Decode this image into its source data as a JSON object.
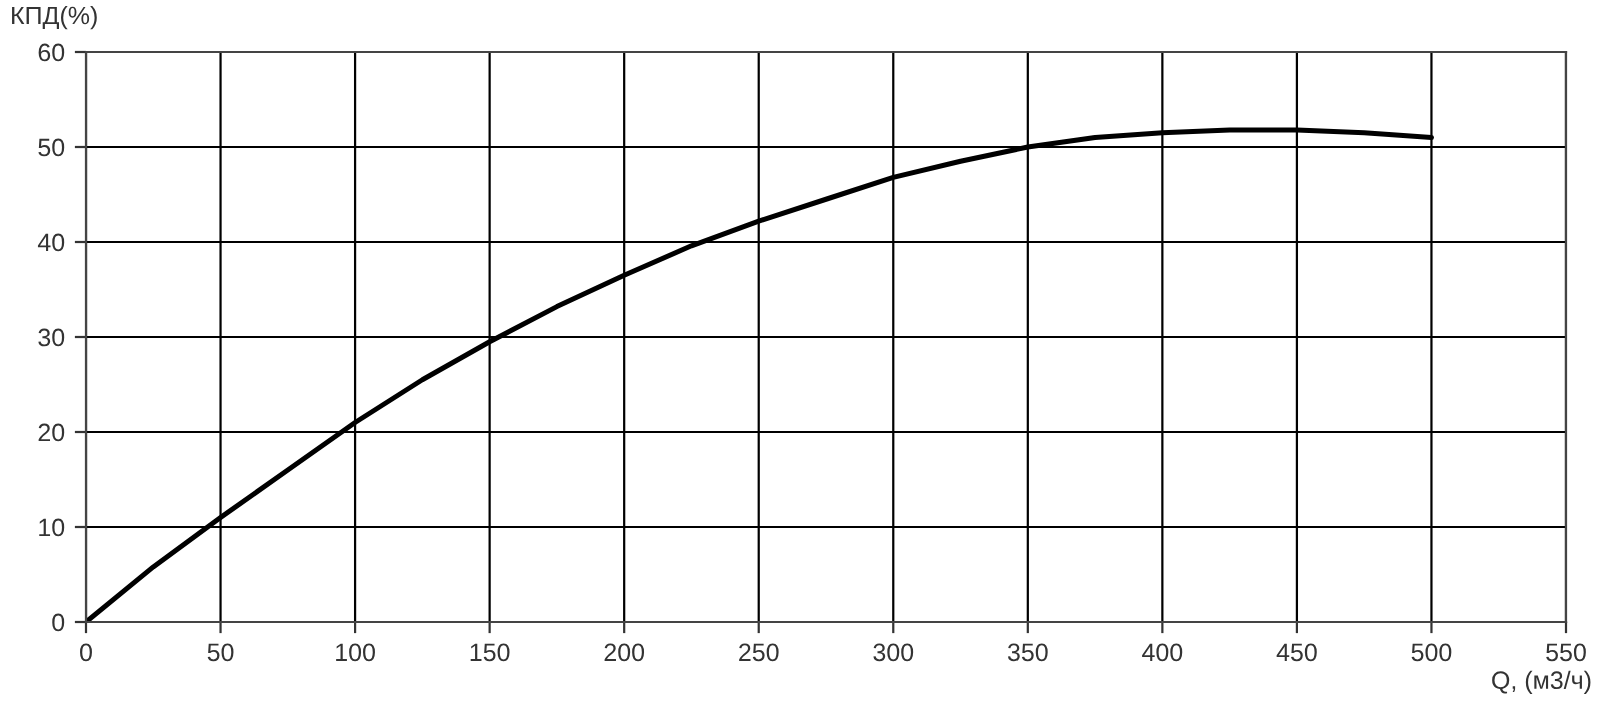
{
  "chart_data": {
    "type": "line",
    "xlabel": "Q, (м3/ч)",
    "ylabel": "КПД(%)",
    "x": [
      0,
      25,
      50,
      75,
      100,
      125,
      150,
      175,
      200,
      225,
      250,
      275,
      300,
      325,
      350,
      375,
      400,
      425,
      450,
      475,
      500
    ],
    "series": [
      {
        "color": "#000000",
        "values": [
          0,
          5.8,
          11,
          16,
          21,
          25.5,
          29.5,
          33.2,
          36.5,
          39.6,
          42.2,
          44.5,
          46.8,
          48.5,
          50,
          51,
          51.5,
          51.8,
          51.8,
          51.5,
          51
        ]
      }
    ],
    "xlim": [
      0,
      550
    ],
    "ylim": [
      0,
      60
    ],
    "xticks": [
      0,
      50,
      100,
      150,
      200,
      250,
      300,
      350,
      400,
      450,
      500,
      550
    ],
    "yticks": [
      0,
      10,
      20,
      30,
      40,
      50,
      60
    ],
    "grid": true,
    "marker": "none",
    "line_style": "solid"
  }
}
